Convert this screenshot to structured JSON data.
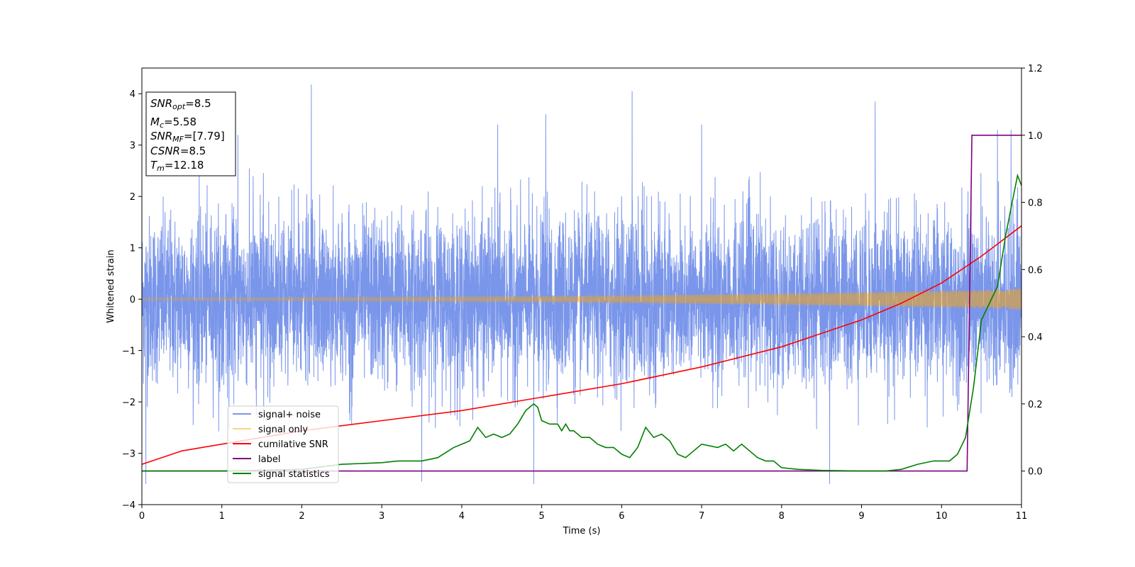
{
  "chart_data": {
    "type": "line",
    "title": "",
    "xlabel": "Time (s)",
    "ylabel": "Whitened strain",
    "xlim": [
      0,
      11
    ],
    "ylim": [
      -4,
      4.5
    ],
    "y2lim": [
      -0.1,
      1.2
    ],
    "x_ticks": [
      "0",
      "1",
      "2",
      "3",
      "4",
      "5",
      "6",
      "7",
      "8",
      "9",
      "10",
      "11"
    ],
    "y_ticks": [
      "−4",
      "−3",
      "−2",
      "−1",
      "0",
      "1",
      "2",
      "3",
      "4"
    ],
    "y2_ticks": [
      "0.0",
      "0.2",
      "0.4",
      "0.6",
      "0.8",
      "1.0",
      "1.2"
    ],
    "grid": false,
    "legend_position": "bottom-left",
    "info_box": {
      "snr_opt": {
        "sym": "SNR",
        "sub": "opt",
        "value": "=8.5"
      },
      "mc": {
        "sym": "M",
        "sub": "c",
        "value": "=5.58"
      },
      "snr_mf": {
        "sym": "SNR",
        "sub": "MF",
        "value": "=[7.79]"
      },
      "csnr": {
        "sym": "CSNR",
        "sub": "",
        "value": "=8.5"
      },
      "tm": {
        "sym": "T",
        "sub": "m",
        "value": "=12.18"
      }
    },
    "series": [
      {
        "name": "signal+ noise",
        "axis": "left",
        "color": "#4169e1",
        "description_values": "noise band roughly between -2.3 and 2.3 with spikes up to 4.2",
        "noise_sigma": 0.8,
        "peaks": [
          [
            0.05,
            -3.6
          ],
          [
            1.2,
            3.2
          ],
          [
            2.12,
            4.18
          ],
          [
            3.5,
            -3.55
          ],
          [
            4.45,
            3.4
          ],
          [
            4.9,
            -3.6
          ],
          [
            5.05,
            3.6
          ],
          [
            6.13,
            4.05
          ],
          [
            7.0,
            3.4
          ],
          [
            8.6,
            -3.6
          ],
          [
            9.17,
            3.85
          ],
          [
            10.7,
            3.3
          ],
          [
            10.87,
            3.3
          ]
        ]
      },
      {
        "name": "signal only",
        "axis": "left",
        "color": "#ffa500",
        "envelope_start": 0.03,
        "envelope_end": 0.2
      },
      {
        "name": "cumilative SNR",
        "axis": "right",
        "color": "#ff0000",
        "x": [
          0,
          0.5,
          1,
          2,
          3,
          4,
          5,
          6,
          7,
          8,
          9,
          9.5,
          10,
          10.5,
          11
        ],
        "y": [
          0.02,
          0.06,
          0.08,
          0.12,
          0.15,
          0.18,
          0.22,
          0.26,
          0.31,
          0.37,
          0.45,
          0.5,
          0.56,
          0.64,
          0.73
        ]
      },
      {
        "name": "label",
        "axis": "right",
        "color": "#800080",
        "x": [
          0,
          10.32,
          10.38,
          11
        ],
        "y": [
          0.0,
          0.0,
          1.0,
          1.0
        ]
      },
      {
        "name": "signal statistics",
        "axis": "right",
        "color": "#008000",
        "x": [
          0,
          1,
          2,
          2.5,
          3,
          3.2,
          3.5,
          3.7,
          3.9,
          4.0,
          4.1,
          4.2,
          4.3,
          4.4,
          4.5,
          4.6,
          4.7,
          4.8,
          4.9,
          4.95,
          5.0,
          5.1,
          5.2,
          5.25,
          5.3,
          5.35,
          5.4,
          5.5,
          5.6,
          5.7,
          5.8,
          5.9,
          6.0,
          6.1,
          6.2,
          6.3,
          6.4,
          6.5,
          6.6,
          6.7,
          6.8,
          6.9,
          7.0,
          7.2,
          7.3,
          7.4,
          7.5,
          7.6,
          7.7,
          7.8,
          7.9,
          8.0,
          8.2,
          8.5,
          9.0,
          9.3,
          9.5,
          9.7,
          9.9,
          10.1,
          10.2,
          10.3,
          10.4,
          10.5,
          10.6,
          10.7,
          10.8,
          10.9,
          10.95,
          11.0
        ],
        "y": [
          0.0,
          0.0,
          0.005,
          0.02,
          0.025,
          0.03,
          0.03,
          0.04,
          0.07,
          0.08,
          0.09,
          0.13,
          0.1,
          0.11,
          0.1,
          0.11,
          0.14,
          0.18,
          0.2,
          0.19,
          0.15,
          0.14,
          0.14,
          0.12,
          0.14,
          0.12,
          0.12,
          0.1,
          0.1,
          0.08,
          0.07,
          0.07,
          0.05,
          0.04,
          0.07,
          0.13,
          0.1,
          0.11,
          0.09,
          0.05,
          0.04,
          0.06,
          0.08,
          0.07,
          0.08,
          0.06,
          0.08,
          0.06,
          0.04,
          0.03,
          0.03,
          0.01,
          0.005,
          0.002,
          0.0,
          0.0,
          0.005,
          0.02,
          0.03,
          0.03,
          0.05,
          0.1,
          0.25,
          0.45,
          0.5,
          0.55,
          0.7,
          0.82,
          0.88,
          0.85
        ]
      }
    ]
  }
}
